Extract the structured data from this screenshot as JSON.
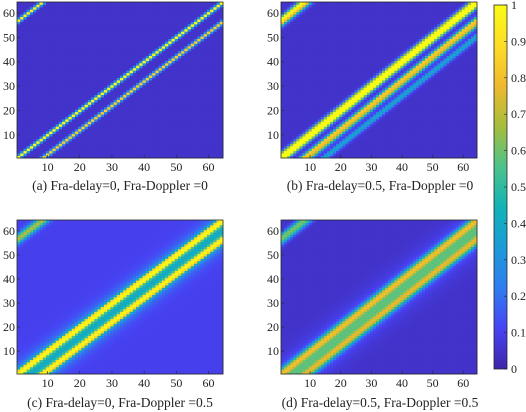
{
  "figure": {
    "colormap": [
      "#3e26a8",
      "#4743f4",
      "#2f7df0",
      "#1b9bd8",
      "#12b3b7",
      "#4cc38b",
      "#a6bd3b",
      "#efb92e",
      "#fddd26",
      "#f9fb15"
    ],
    "background": "#ffffff"
  },
  "chart_data": [
    {
      "type": "heatmap",
      "caption": "(a) Fra-delay=0, Fra-Doppler =0",
      "x_ticks": [
        10,
        20,
        30,
        40,
        50,
        60
      ],
      "y_ticks": [
        10,
        20,
        30,
        40,
        50,
        60
      ],
      "xlim": [
        0.5,
        64.5
      ],
      "ylim": [
        0.5,
        64.5
      ],
      "grid": false,
      "matrix_size": [
        64,
        64
      ],
      "bands": [
        {
          "offset": 0,
          "peak": 0.95,
          "width": 0.6
        },
        {
          "offset": -8,
          "peak": 0.8,
          "width": 0.6
        },
        {
          "offset": 56,
          "peak": 0.9,
          "width": 0.6
        }
      ],
      "base": 0.05
    },
    {
      "type": "heatmap",
      "caption": "(b) Fra-delay=0.5, Fra-Doppler =0",
      "x_ticks": [
        10,
        20,
        30,
        40,
        50,
        60
      ],
      "y_ticks": [
        10,
        20,
        30,
        40,
        50,
        60
      ],
      "xlim": [
        0.5,
        64.5
      ],
      "ylim": [
        0.5,
        64.5
      ],
      "grid": false,
      "matrix_size": [
        64,
        64
      ],
      "bands": [
        {
          "offset": 1,
          "peak": 0.95,
          "width": 1.0
        },
        {
          "offset": -1,
          "peak": 0.85,
          "width": 1.0
        },
        {
          "offset": -7,
          "peak": 0.7,
          "width": 1.0
        },
        {
          "offset": -9,
          "peak": 0.55,
          "width": 1.0
        },
        {
          "offset": -14,
          "peak": 0.35,
          "width": 1.0
        },
        {
          "offset": 57,
          "peak": 0.85,
          "width": 1.0
        },
        {
          "offset": 55,
          "peak": 0.6,
          "width": 1.0
        }
      ],
      "base": 0.05
    },
    {
      "type": "heatmap",
      "caption": "(c) Fra-delay=0, Fra-Doppler =0.5",
      "x_ticks": [
        10,
        20,
        30,
        40,
        50,
        60
      ],
      "y_ticks": [
        10,
        20,
        30,
        40,
        50,
        60
      ],
      "xlim": [
        0.5,
        64.5
      ],
      "ylim": [
        0.5,
        64.5
      ],
      "grid": false,
      "matrix_size": [
        64,
        64
      ],
      "bands": [
        {
          "offset": 0,
          "peak": 0.9,
          "width": 1.1
        },
        {
          "offset": -8,
          "peak": 0.85,
          "width": 1.1
        },
        {
          "offset": -4,
          "peak": 0.3,
          "width": 5.0
        },
        {
          "offset": 56,
          "peak": 0.6,
          "width": 1.5
        }
      ],
      "base": 0.1
    },
    {
      "type": "heatmap",
      "caption": "(d) Fra-delay=0.5, Fra-Doppler =0.5",
      "x_ticks": [
        10,
        20,
        30,
        40,
        50,
        60
      ],
      "y_ticks": [
        10,
        20,
        30,
        40,
        50,
        60
      ],
      "xlim": [
        0.5,
        64.5
      ],
      "ylim": [
        0.5,
        64.5
      ],
      "grid": false,
      "matrix_size": [
        64,
        64
      ],
      "bands": [
        {
          "offset": 1,
          "peak": 0.45,
          "width": 1.2
        },
        {
          "offset": -1,
          "peak": 0.45,
          "width": 1.2
        },
        {
          "offset": -4,
          "peak": 0.35,
          "width": 1.2
        },
        {
          "offset": -7,
          "peak": 0.45,
          "width": 1.2
        },
        {
          "offset": -9,
          "peak": 0.4,
          "width": 1.2
        },
        {
          "offset": -4,
          "peak": 0.15,
          "width": 6.0
        },
        {
          "offset": 57,
          "peak": 0.45,
          "width": 1.2
        },
        {
          "offset": 55,
          "peak": 0.35,
          "width": 1.2
        }
      ],
      "base": 0.05
    }
  ],
  "colorbar": {
    "range": [
      0,
      1
    ],
    "ticks": [
      "0",
      "0.1",
      "0.2",
      "0.3",
      "0.4",
      "0.5",
      "0.6",
      "0.7",
      "0.8",
      "0.9",
      "1"
    ]
  }
}
